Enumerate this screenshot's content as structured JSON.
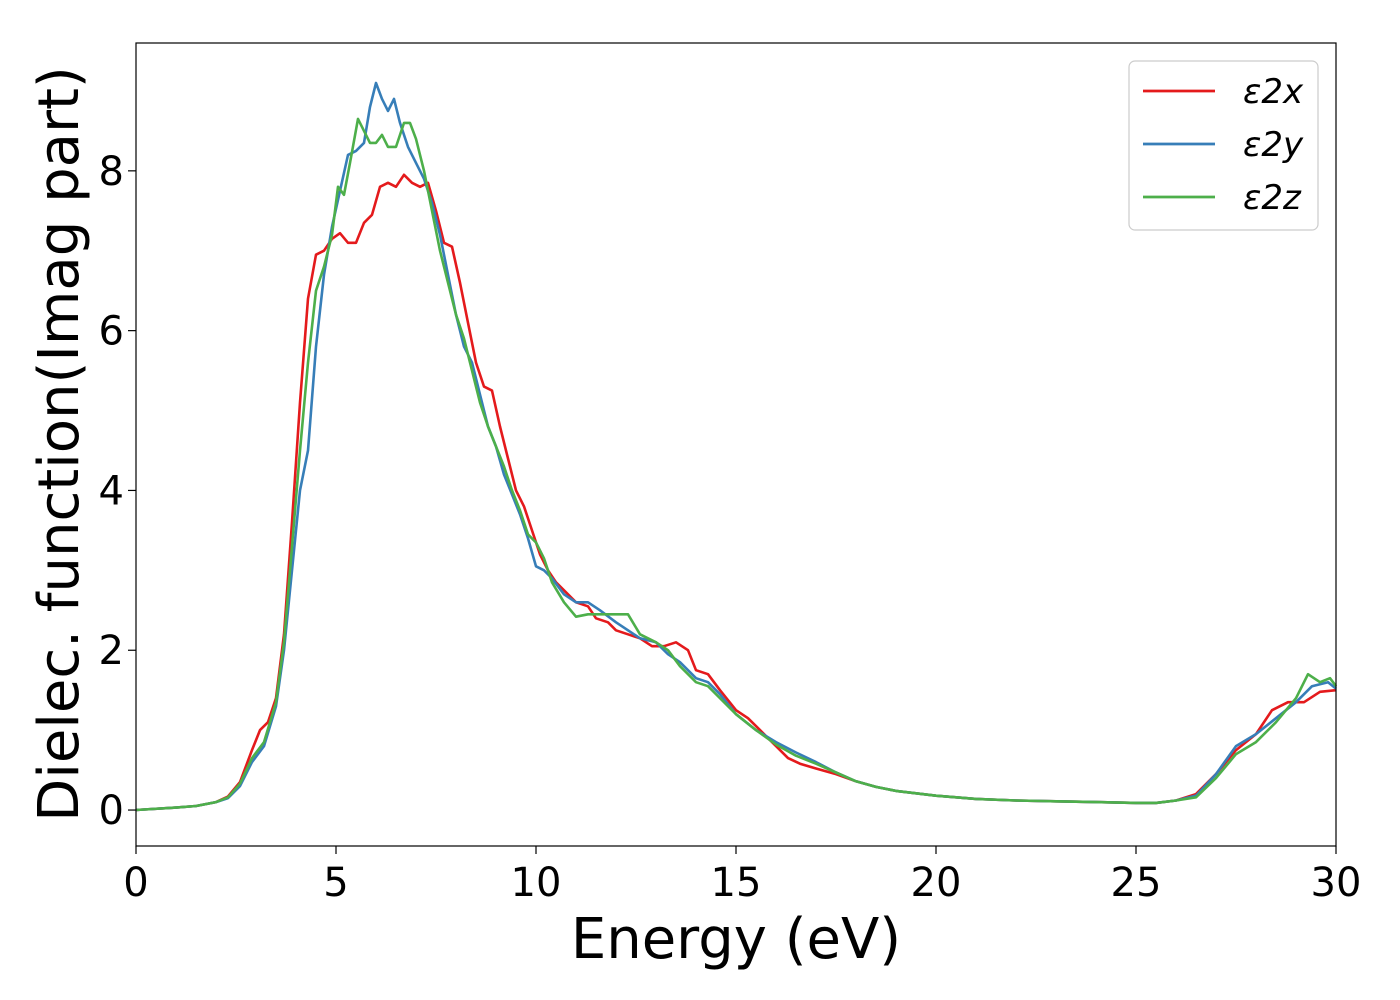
{
  "chart_data": {
    "type": "line",
    "title": "",
    "xlabel": "Energy (eV)",
    "ylabel": "Dielec. function(Imag part)",
    "xlim": [
      0,
      30
    ],
    "ylim": [
      -0.45,
      9.6
    ],
    "xticks": [
      0,
      5,
      10,
      15,
      20,
      25,
      30
    ],
    "yticks": [
      0,
      2,
      4,
      6,
      8
    ],
    "grid": false,
    "legend_position": "top-right",
    "series": [
      {
        "name": "ε2x",
        "color": "#e41a1c",
        "points": [
          [
            0,
            0.0
          ],
          [
            1,
            0.03
          ],
          [
            1.5,
            0.05
          ],
          [
            2,
            0.1
          ],
          [
            2.3,
            0.17
          ],
          [
            2.6,
            0.35
          ],
          [
            2.9,
            0.75
          ],
          [
            3.1,
            1.0
          ],
          [
            3.3,
            1.1
          ],
          [
            3.5,
            1.4
          ],
          [
            3.7,
            2.2
          ],
          [
            3.9,
            3.6
          ],
          [
            4.1,
            5.1
          ],
          [
            4.3,
            6.4
          ],
          [
            4.5,
            6.95
          ],
          [
            4.7,
            7.0
          ],
          [
            4.9,
            7.15
          ],
          [
            5.1,
            7.22
          ],
          [
            5.3,
            7.1
          ],
          [
            5.5,
            7.1
          ],
          [
            5.7,
            7.35
          ],
          [
            5.9,
            7.45
          ],
          [
            6.1,
            7.8
          ],
          [
            6.3,
            7.85
          ],
          [
            6.5,
            7.8
          ],
          [
            6.7,
            7.95
          ],
          [
            6.9,
            7.85
          ],
          [
            7.1,
            7.8
          ],
          [
            7.3,
            7.85
          ],
          [
            7.5,
            7.5
          ],
          [
            7.7,
            7.1
          ],
          [
            7.9,
            7.05
          ],
          [
            8.1,
            6.6
          ],
          [
            8.3,
            6.1
          ],
          [
            8.5,
            5.6
          ],
          [
            8.7,
            5.3
          ],
          [
            8.9,
            5.25
          ],
          [
            9.1,
            4.8
          ],
          [
            9.3,
            4.4
          ],
          [
            9.5,
            4.0
          ],
          [
            9.7,
            3.8
          ],
          [
            9.9,
            3.5
          ],
          [
            10.1,
            3.2
          ],
          [
            10.3,
            3.0
          ],
          [
            10.5,
            2.85
          ],
          [
            10.8,
            2.7
          ],
          [
            11,
            2.6
          ],
          [
            11.3,
            2.55
          ],
          [
            11.5,
            2.4
          ],
          [
            11.8,
            2.35
          ],
          [
            12,
            2.25
          ],
          [
            12.3,
            2.2
          ],
          [
            12.6,
            2.15
          ],
          [
            12.9,
            2.05
          ],
          [
            13.2,
            2.05
          ],
          [
            13.5,
            2.1
          ],
          [
            13.8,
            2.0
          ],
          [
            14,
            1.75
          ],
          [
            14.3,
            1.7
          ],
          [
            14.6,
            1.5
          ],
          [
            15,
            1.25
          ],
          [
            15.3,
            1.15
          ],
          [
            15.6,
            1.0
          ],
          [
            16,
            0.8
          ],
          [
            16.3,
            0.65
          ],
          [
            16.6,
            0.58
          ],
          [
            17,
            0.52
          ],
          [
            17.5,
            0.45
          ],
          [
            18,
            0.36
          ],
          [
            18.5,
            0.29
          ],
          [
            19,
            0.24
          ],
          [
            20,
            0.18
          ],
          [
            21,
            0.14
          ],
          [
            22,
            0.12
          ],
          [
            23,
            0.11
          ],
          [
            24,
            0.1
          ],
          [
            25,
            0.09
          ],
          [
            25.5,
            0.09
          ],
          [
            26,
            0.12
          ],
          [
            26.5,
            0.2
          ],
          [
            27,
            0.45
          ],
          [
            27.5,
            0.75
          ],
          [
            28,
            0.95
          ],
          [
            28.4,
            1.25
          ],
          [
            28.8,
            1.35
          ],
          [
            29.2,
            1.35
          ],
          [
            29.6,
            1.48
          ],
          [
            30,
            1.5
          ]
        ]
      },
      {
        "name": "ε2y",
        "color": "#377eb8",
        "points": [
          [
            0,
            0.0
          ],
          [
            1,
            0.03
          ],
          [
            1.5,
            0.05
          ],
          [
            2,
            0.1
          ],
          [
            2.3,
            0.15
          ],
          [
            2.6,
            0.3
          ],
          [
            2.9,
            0.6
          ],
          [
            3.2,
            0.8
          ],
          [
            3.5,
            1.3
          ],
          [
            3.7,
            2.0
          ],
          [
            3.9,
            3.0
          ],
          [
            4.1,
            4.0
          ],
          [
            4.3,
            4.5
          ],
          [
            4.5,
            5.8
          ],
          [
            4.7,
            6.7
          ],
          [
            4.9,
            7.3
          ],
          [
            5.1,
            7.75
          ],
          [
            5.3,
            8.2
          ],
          [
            5.5,
            8.25
          ],
          [
            5.7,
            8.35
          ],
          [
            5.85,
            8.8
          ],
          [
            6.0,
            9.1
          ],
          [
            6.15,
            8.9
          ],
          [
            6.3,
            8.75
          ],
          [
            6.45,
            8.9
          ],
          [
            6.6,
            8.6
          ],
          [
            6.8,
            8.3
          ],
          [
            7.0,
            8.1
          ],
          [
            7.2,
            7.9
          ],
          [
            7.4,
            7.6
          ],
          [
            7.6,
            7.2
          ],
          [
            7.8,
            6.7
          ],
          [
            8.0,
            6.2
          ],
          [
            8.2,
            5.8
          ],
          [
            8.4,
            5.6
          ],
          [
            8.6,
            5.2
          ],
          [
            8.8,
            4.8
          ],
          [
            9.0,
            4.55
          ],
          [
            9.2,
            4.2
          ],
          [
            9.4,
            3.95
          ],
          [
            9.6,
            3.7
          ],
          [
            9.8,
            3.4
          ],
          [
            10.0,
            3.05
          ],
          [
            10.2,
            3.0
          ],
          [
            10.4,
            2.9
          ],
          [
            10.7,
            2.7
          ],
          [
            11.0,
            2.6
          ],
          [
            11.3,
            2.6
          ],
          [
            11.6,
            2.5
          ],
          [
            12.0,
            2.35
          ],
          [
            12.3,
            2.25
          ],
          [
            12.6,
            2.15
          ],
          [
            13.0,
            2.1
          ],
          [
            13.3,
            1.95
          ],
          [
            13.6,
            1.85
          ],
          [
            14,
            1.65
          ],
          [
            14.3,
            1.6
          ],
          [
            14.6,
            1.45
          ],
          [
            15,
            1.2
          ],
          [
            15.5,
            1.0
          ],
          [
            16,
            0.85
          ],
          [
            16.5,
            0.72
          ],
          [
            17,
            0.6
          ],
          [
            17.5,
            0.47
          ],
          [
            18,
            0.36
          ],
          [
            18.5,
            0.29
          ],
          [
            19,
            0.24
          ],
          [
            20,
            0.18
          ],
          [
            21,
            0.14
          ],
          [
            22,
            0.12
          ],
          [
            23,
            0.11
          ],
          [
            24,
            0.1
          ],
          [
            25,
            0.09
          ],
          [
            25.5,
            0.09
          ],
          [
            26,
            0.12
          ],
          [
            26.5,
            0.18
          ],
          [
            27,
            0.45
          ],
          [
            27.5,
            0.8
          ],
          [
            28,
            0.95
          ],
          [
            28.5,
            1.15
          ],
          [
            29,
            1.35
          ],
          [
            29.4,
            1.55
          ],
          [
            29.8,
            1.6
          ],
          [
            30,
            1.52
          ]
        ]
      },
      {
        "name": "ε2z",
        "color": "#4daf4a",
        "points": [
          [
            0,
            0.0
          ],
          [
            1,
            0.03
          ],
          [
            1.5,
            0.05
          ],
          [
            2,
            0.1
          ],
          [
            2.3,
            0.16
          ],
          [
            2.6,
            0.33
          ],
          [
            2.9,
            0.65
          ],
          [
            3.2,
            0.85
          ],
          [
            3.5,
            1.35
          ],
          [
            3.7,
            2.1
          ],
          [
            3.9,
            3.3
          ],
          [
            4.1,
            4.5
          ],
          [
            4.3,
            5.6
          ],
          [
            4.5,
            6.5
          ],
          [
            4.7,
            6.8
          ],
          [
            4.9,
            7.2
          ],
          [
            5.05,
            7.8
          ],
          [
            5.2,
            7.7
          ],
          [
            5.35,
            8.1
          ],
          [
            5.55,
            8.65
          ],
          [
            5.7,
            8.5
          ],
          [
            5.85,
            8.35
          ],
          [
            6.0,
            8.35
          ],
          [
            6.15,
            8.45
          ],
          [
            6.3,
            8.3
          ],
          [
            6.5,
            8.3
          ],
          [
            6.7,
            8.6
          ],
          [
            6.85,
            8.6
          ],
          [
            7.0,
            8.4
          ],
          [
            7.2,
            8.0
          ],
          [
            7.4,
            7.5
          ],
          [
            7.6,
            7.0
          ],
          [
            7.8,
            6.6
          ],
          [
            8.0,
            6.2
          ],
          [
            8.2,
            5.9
          ],
          [
            8.4,
            5.5
          ],
          [
            8.6,
            5.1
          ],
          [
            8.8,
            4.8
          ],
          [
            9.0,
            4.55
          ],
          [
            9.2,
            4.3
          ],
          [
            9.4,
            4.0
          ],
          [
            9.6,
            3.75
          ],
          [
            9.8,
            3.45
          ],
          [
            10.0,
            3.35
          ],
          [
            10.2,
            3.15
          ],
          [
            10.4,
            2.85
          ],
          [
            10.7,
            2.6
          ],
          [
            11.0,
            2.42
          ],
          [
            11.3,
            2.45
          ],
          [
            11.6,
            2.45
          ],
          [
            12.0,
            2.45
          ],
          [
            12.3,
            2.45
          ],
          [
            12.6,
            2.2
          ],
          [
            13.0,
            2.1
          ],
          [
            13.3,
            2.0
          ],
          [
            13.6,
            1.8
          ],
          [
            14,
            1.6
          ],
          [
            14.3,
            1.55
          ],
          [
            14.6,
            1.4
          ],
          [
            15,
            1.2
          ],
          [
            15.5,
            1.0
          ],
          [
            16,
            0.82
          ],
          [
            16.5,
            0.68
          ],
          [
            17,
            0.58
          ],
          [
            17.5,
            0.47
          ],
          [
            18,
            0.36
          ],
          [
            18.5,
            0.29
          ],
          [
            19,
            0.24
          ],
          [
            20,
            0.18
          ],
          [
            21,
            0.14
          ],
          [
            22,
            0.12
          ],
          [
            23,
            0.11
          ],
          [
            24,
            0.1
          ],
          [
            25,
            0.09
          ],
          [
            25.5,
            0.09
          ],
          [
            26,
            0.12
          ],
          [
            26.5,
            0.16
          ],
          [
            27,
            0.4
          ],
          [
            27.5,
            0.7
          ],
          [
            28,
            0.85
          ],
          [
            28.5,
            1.1
          ],
          [
            29,
            1.4
          ],
          [
            29.3,
            1.7
          ],
          [
            29.6,
            1.6
          ],
          [
            29.85,
            1.65
          ],
          [
            30,
            1.55
          ]
        ]
      }
    ]
  }
}
